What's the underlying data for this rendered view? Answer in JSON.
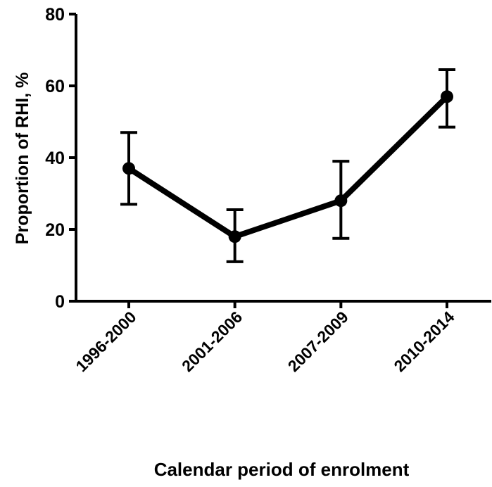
{
  "chart_data": {
    "type": "line",
    "x_label": "Calendar period of enrolment",
    "y_label": "Proportion of RHI, %",
    "categories": [
      "1996-2000",
      "2001-2006",
      "2007-2009",
      "2010-2014"
    ],
    "series": [
      {
        "color": "#000000",
        "values": [
          37,
          18,
          28,
          57
        ],
        "lower": [
          27,
          11,
          17.5,
          48.5
        ],
        "upper": [
          47,
          25.5,
          39,
          64.5
        ]
      }
    ],
    "ylim": [
      0,
      80
    ],
    "yticks": [
      0,
      20,
      40,
      60,
      80
    ]
  }
}
